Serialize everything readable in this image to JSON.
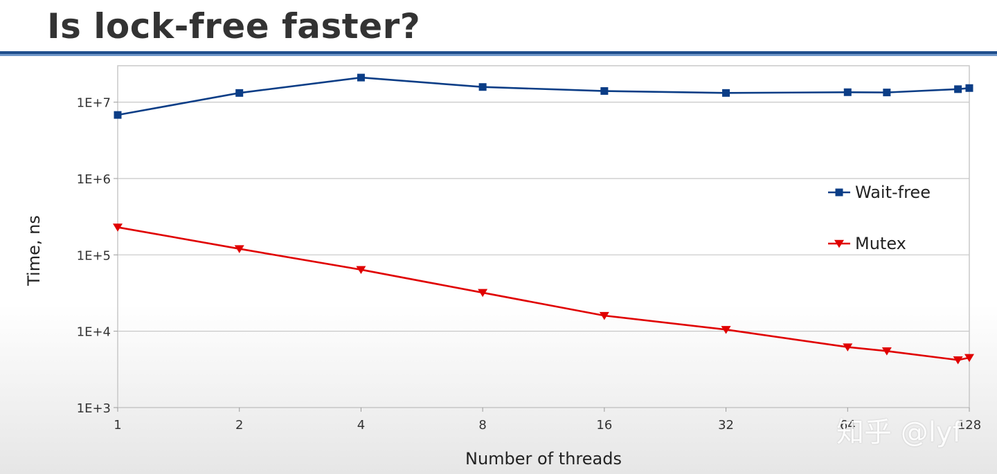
{
  "slide": {
    "title": "Is lock-free faster?"
  },
  "watermark": "知乎 @lyf",
  "colors": {
    "title_rule": "#1f4e8c",
    "wait_free": "#0b3d86",
    "mutex": "#e00000",
    "grid": "#c8c8c8"
  },
  "chart_data": {
    "type": "line",
    "xlabel": "Number of threads",
    "ylabel": "Time, ns",
    "xscale": "log2",
    "yscale": "log10",
    "xlim": [
      1,
      128
    ],
    "ylim": [
      1000,
      30000000
    ],
    "x_ticks": [
      "1",
      "2",
      "4",
      "8",
      "16",
      "32",
      "64",
      "128"
    ],
    "y_ticks": [
      "1E+3",
      "1E+4",
      "1E+5",
      "1E+6",
      "1E+7"
    ],
    "grid": "horizontal",
    "legend_position": "right",
    "series": [
      {
        "name": "Wait-free",
        "marker": "square",
        "color": "#0b3d86",
        "x": [
          1,
          2,
          4,
          8,
          16,
          32,
          64,
          80,
          120,
          128
        ],
        "y": [
          6800000,
          13200000,
          21000000,
          15800000,
          14000000,
          13200000,
          13500000,
          13400000,
          14800000,
          15300000
        ]
      },
      {
        "name": "Mutex",
        "marker": "triangle-down",
        "color": "#e00000",
        "x": [
          1,
          2,
          4,
          8,
          16,
          32,
          64,
          80,
          120,
          128
        ],
        "y": [
          230000,
          120000,
          64000,
          32000,
          16000,
          10500,
          6200,
          5500,
          4200,
          4500
        ]
      }
    ]
  }
}
